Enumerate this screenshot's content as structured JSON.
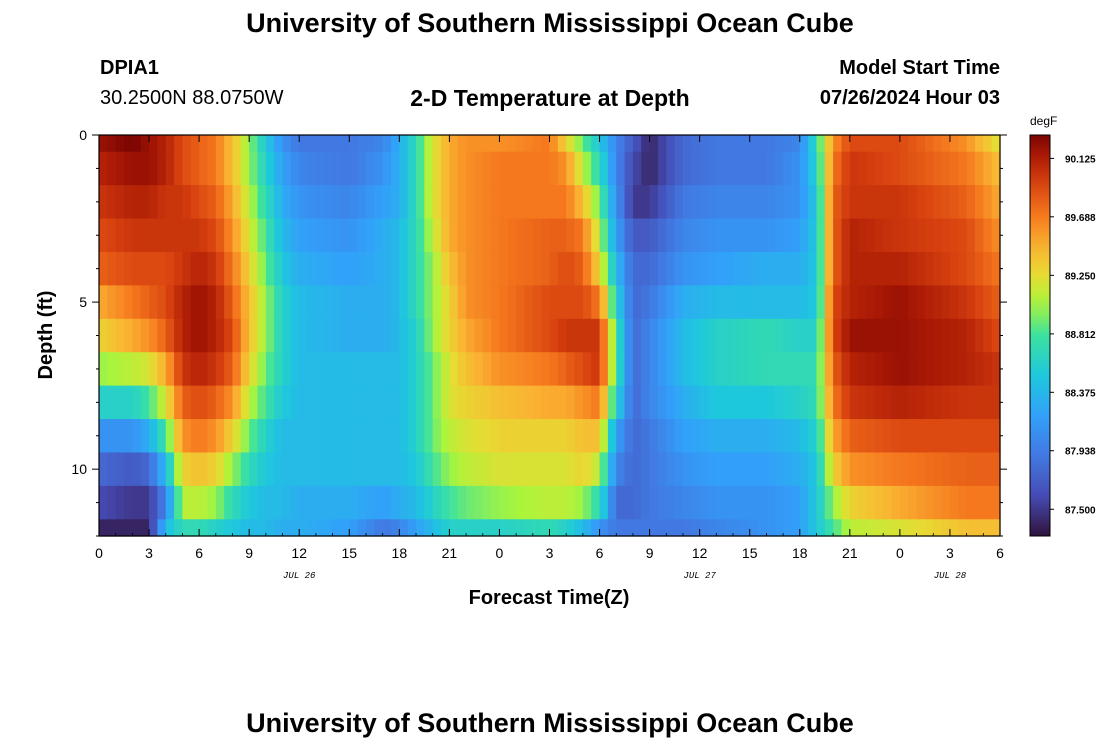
{
  "header": {
    "title": "University of Southern Mississippi Ocean Cube",
    "station_id": "DPIA1",
    "coords": "30.2500N  88.0750W",
    "chart_title": "2-D Temperature at Depth",
    "model_start_label": "Model Start Time",
    "model_start_value": "07/26/2024 Hour 03"
  },
  "footer": {
    "title": "University of Southern Mississippi Ocean Cube"
  },
  "chart_data": {
    "type": "heatmap",
    "title": "2-D Temperature at Depth",
    "xlabel": "Forecast Time(Z)",
    "ylabel": "Depth (ft)",
    "x_hours_from_start": [
      0,
      54
    ],
    "x_start_hour_of_day": 0,
    "x_tick_step_hours": 3,
    "x_tick_labels": [
      "0",
      "3",
      "6",
      "9",
      "12",
      "15",
      "18",
      "21",
      "0",
      "3",
      "6",
      "9",
      "12",
      "15",
      "18",
      "21",
      "0",
      "3",
      "6"
    ],
    "date_labels": [
      {
        "label": "JUL 26",
        "hour": 12
      },
      {
        "label": "JUL 27",
        "hour": 36
      },
      {
        "label": "JUL 28",
        "hour": 51
      }
    ],
    "y_ticks": [
      0,
      5,
      10
    ],
    "ylim": [
      0,
      12
    ],
    "colorbar": {
      "units": "degF",
      "min": 87.3,
      "max": 90.3,
      "labels": [
        "90.125",
        "89.688",
        "89.250",
        "88.812",
        "88.375",
        "87.938",
        "87.500"
      ]
    },
    "depth_levels_ft": [
      0,
      1,
      2,
      3,
      4,
      5,
      6,
      7,
      8,
      9,
      10,
      11,
      12
    ],
    "profiles": [
      {
        "hour": 0,
        "temps": [
          90.2,
          90.1,
          90.0,
          89.9,
          89.8,
          89.5,
          89.3,
          89.0,
          88.6,
          88.1,
          87.8,
          87.6,
          87.4
        ]
      },
      {
        "hour": 2,
        "temps": [
          90.3,
          90.2,
          90.1,
          90.0,
          89.9,
          89.7,
          89.5,
          89.1,
          88.6,
          88.1,
          87.7,
          87.5,
          87.4
        ]
      },
      {
        "hour": 3,
        "temps": [
          90.2,
          90.2,
          90.1,
          90.0,
          89.9,
          89.8,
          89.6,
          89.2,
          88.8,
          88.3,
          87.8,
          87.5,
          87.4
        ]
      },
      {
        "hour": 4,
        "temps": [
          90.1,
          90.1,
          90.0,
          90.0,
          89.9,
          89.9,
          89.8,
          89.5,
          89.2,
          88.8,
          88.4,
          88.0,
          88.4
        ]
      },
      {
        "hour": 5,
        "temps": [
          89.9,
          89.9,
          90.0,
          90.0,
          90.0,
          90.1,
          90.1,
          90.0,
          89.8,
          89.6,
          89.3,
          89.1,
          88.7
        ]
      },
      {
        "hour": 6,
        "temps": [
          89.8,
          89.8,
          89.9,
          90.0,
          90.1,
          90.2,
          90.2,
          90.1,
          89.9,
          89.7,
          89.4,
          89.1,
          88.7
        ]
      },
      {
        "hour": 7,
        "temps": [
          89.7,
          89.7,
          89.8,
          89.9,
          90.0,
          90.1,
          90.1,
          90.0,
          89.8,
          89.6,
          89.3,
          89.0,
          88.6
        ]
      },
      {
        "hour": 8,
        "temps": [
          89.4,
          89.4,
          89.5,
          89.6,
          89.7,
          89.8,
          89.9,
          89.8,
          89.6,
          89.3,
          89.0,
          88.7,
          88.5
        ]
      },
      {
        "hour": 9,
        "temps": [
          89.0,
          89.0,
          89.1,
          89.2,
          89.3,
          89.4,
          89.4,
          89.3,
          89.1,
          88.9,
          88.7,
          88.5,
          88.4
        ]
      },
      {
        "hour": 10,
        "temps": [
          88.5,
          88.6,
          88.7,
          88.8,
          88.9,
          89.0,
          89.0,
          88.9,
          88.8,
          88.6,
          88.5,
          88.4,
          88.4
        ]
      },
      {
        "hour": 11,
        "temps": [
          88.1,
          88.2,
          88.3,
          88.4,
          88.5,
          88.6,
          88.6,
          88.6,
          88.5,
          88.4,
          88.4,
          88.4,
          88.3
        ]
      },
      {
        "hour": 12,
        "temps": [
          87.9,
          88.0,
          88.1,
          88.2,
          88.3,
          88.4,
          88.4,
          88.4,
          88.4,
          88.4,
          88.4,
          88.3,
          88.3
        ]
      },
      {
        "hour": 15,
        "temps": [
          87.9,
          87.9,
          88.0,
          88.1,
          88.2,
          88.3,
          88.3,
          88.4,
          88.4,
          88.4,
          88.4,
          88.3,
          88.2
        ]
      },
      {
        "hour": 17,
        "temps": [
          88.0,
          88.1,
          88.2,
          88.3,
          88.3,
          88.3,
          88.3,
          88.4,
          88.4,
          88.4,
          88.4,
          88.2,
          87.9
        ]
      },
      {
        "hour": 18,
        "temps": [
          88.3,
          88.3,
          88.3,
          88.4,
          88.4,
          88.4,
          88.4,
          88.4,
          88.4,
          88.4,
          88.4,
          88.3,
          88.0
        ]
      },
      {
        "hour": 19,
        "temps": [
          88.7,
          88.7,
          88.7,
          88.7,
          88.7,
          88.7,
          88.6,
          88.6,
          88.6,
          88.6,
          88.5,
          88.4,
          88.2
        ]
      },
      {
        "hour": 20,
        "temps": [
          89.2,
          89.2,
          89.2,
          89.1,
          89.0,
          89.0,
          89.0,
          88.9,
          88.9,
          88.9,
          88.8,
          88.6,
          88.4
        ]
      },
      {
        "hour": 21,
        "temps": [
          89.5,
          89.5,
          89.5,
          89.5,
          89.4,
          89.3,
          89.3,
          89.2,
          89.2,
          89.1,
          89.0,
          88.8,
          88.6
        ]
      },
      {
        "hour": 22,
        "temps": [
          89.6,
          89.6,
          89.6,
          89.6,
          89.6,
          89.6,
          89.5,
          89.4,
          89.3,
          89.2,
          89.1,
          88.9,
          88.6
        ]
      },
      {
        "hour": 24,
        "temps": [
          89.6,
          89.7,
          89.7,
          89.7,
          89.7,
          89.7,
          89.7,
          89.6,
          89.4,
          89.3,
          89.2,
          89.0,
          88.6
        ]
      },
      {
        "hour": 27,
        "temps": [
          89.7,
          89.7,
          89.7,
          89.8,
          89.8,
          89.9,
          89.9,
          89.7,
          89.5,
          89.3,
          89.2,
          89.1,
          88.7
        ]
      },
      {
        "hour": 28,
        "temps": [
          89.3,
          89.6,
          89.7,
          89.8,
          89.9,
          89.9,
          90.0,
          89.8,
          89.5,
          89.3,
          89.2,
          89.1,
          88.6
        ]
      },
      {
        "hour": 29,
        "temps": [
          88.9,
          89.1,
          89.4,
          89.7,
          89.8,
          89.9,
          90.0,
          89.9,
          89.6,
          89.4,
          89.3,
          89.0,
          88.4
        ]
      },
      {
        "hour": 30,
        "temps": [
          88.5,
          88.7,
          88.9,
          89.1,
          89.3,
          89.7,
          90.0,
          90.0,
          89.7,
          89.4,
          89.1,
          88.7,
          88.1
        ]
      },
      {
        "hour": 31,
        "temps": [
          88.0,
          88.0,
          88.1,
          88.2,
          88.4,
          88.6,
          88.8,
          88.8,
          88.6,
          88.2,
          88.0,
          87.8,
          87.9
        ]
      },
      {
        "hour": 32,
        "temps": [
          87.7,
          87.6,
          87.5,
          87.7,
          87.8,
          87.8,
          87.8,
          87.8,
          87.8,
          87.8,
          87.8,
          87.8,
          87.9
        ]
      },
      {
        "hour": 33,
        "temps": [
          87.4,
          87.4,
          87.5,
          87.7,
          87.8,
          87.9,
          88.0,
          88.0,
          88.0,
          87.9,
          87.9,
          87.9,
          87.9
        ]
      },
      {
        "hour": 35,
        "temps": [
          87.8,
          87.8,
          87.9,
          88.0,
          88.1,
          88.3,
          88.4,
          88.4,
          88.3,
          88.2,
          88.1,
          88.0,
          87.9
        ]
      },
      {
        "hour": 37,
        "temps": [
          87.9,
          87.9,
          88.0,
          88.1,
          88.2,
          88.4,
          88.6,
          88.6,
          88.5,
          88.3,
          88.2,
          88.1,
          88.0
        ]
      },
      {
        "hour": 40,
        "temps": [
          87.9,
          87.9,
          88.0,
          88.1,
          88.3,
          88.4,
          88.7,
          88.7,
          88.5,
          88.3,
          88.2,
          88.1,
          88.1
        ]
      },
      {
        "hour": 42,
        "temps": [
          88.0,
          88.1,
          88.1,
          88.2,
          88.3,
          88.4,
          88.6,
          88.7,
          88.6,
          88.4,
          88.3,
          88.2,
          88.2
        ]
      },
      {
        "hour": 43,
        "temps": [
          88.7,
          88.6,
          88.5,
          88.5,
          88.5,
          88.5,
          88.6,
          88.7,
          88.7,
          88.6,
          88.5,
          88.5,
          88.5
        ]
      },
      {
        "hour": 44,
        "temps": [
          89.6,
          89.7,
          89.8,
          89.8,
          89.8,
          89.9,
          89.9,
          89.8,
          89.7,
          89.5,
          89.3,
          89.0,
          88.8
        ]
      },
      {
        "hour": 45,
        "temps": [
          89.9,
          90.0,
          90.0,
          90.1,
          90.1,
          90.1,
          90.2,
          90.1,
          90.0,
          89.8,
          89.6,
          89.3,
          89.1
        ]
      },
      {
        "hour": 48,
        "temps": [
          89.9,
          89.9,
          90.0,
          90.0,
          90.1,
          90.2,
          90.2,
          90.2,
          90.1,
          89.9,
          89.7,
          89.5,
          89.2
        ]
      },
      {
        "hour": 52,
        "temps": [
          89.6,
          89.7,
          89.8,
          89.9,
          89.9,
          90.0,
          90.1,
          90.1,
          90.0,
          89.9,
          89.8,
          89.7,
          89.4
        ]
      },
      {
        "hour": 54,
        "temps": [
          89.2,
          89.4,
          89.5,
          89.6,
          89.7,
          89.8,
          89.9,
          90.0,
          90.0,
          89.9,
          89.8,
          89.7,
          89.4
        ]
      }
    ]
  }
}
